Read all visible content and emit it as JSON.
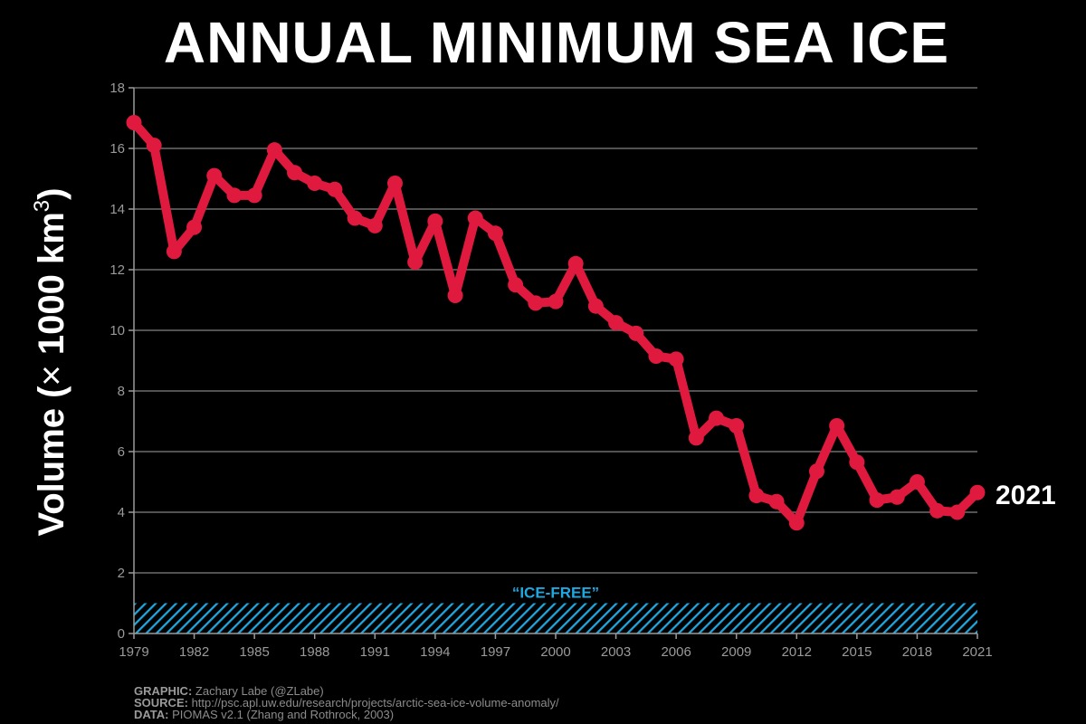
{
  "chart_data": {
    "type": "line",
    "title": "ANNUAL MINIMUM SEA ICE",
    "ylabel_main": "Volume (",
    "ylabel_times": "×",
    "ylabel_units": " 1000 km",
    "ylabel_sup": "3",
    "ylabel_close": ")",
    "ylim": [
      0,
      18
    ],
    "yticks": [
      0,
      2,
      4,
      6,
      8,
      10,
      12,
      14,
      16,
      18
    ],
    "xlim": [
      1979,
      2021
    ],
    "xticks": [
      1979,
      1982,
      1985,
      1988,
      1991,
      1994,
      1997,
      2000,
      2003,
      2006,
      2009,
      2012,
      2015,
      2018,
      2021
    ],
    "grid": "horizontal",
    "series": [
      {
        "color": "#e0193f",
        "x": [
          1979,
          1980,
          1981,
          1982,
          1983,
          1984,
          1985,
          1986,
          1987,
          1988,
          1989,
          1990,
          1991,
          1992,
          1993,
          1994,
          1995,
          1996,
          1997,
          1998,
          1999,
          2000,
          2001,
          2002,
          2003,
          2004,
          2005,
          2006,
          2007,
          2008,
          2009,
          2010,
          2011,
          2012,
          2013,
          2014,
          2015,
          2016,
          2017,
          2018,
          2019,
          2020,
          2021
        ],
        "y": [
          16.85,
          16.1,
          12.6,
          13.4,
          15.1,
          14.45,
          14.45,
          15.95,
          15.2,
          14.85,
          14.65,
          13.7,
          13.45,
          14.85,
          12.25,
          13.6,
          11.15,
          13.7,
          13.2,
          11.5,
          10.9,
          10.95,
          12.2,
          10.8,
          10.25,
          9.9,
          9.15,
          9.05,
          6.45,
          7.1,
          6.85,
          4.55,
          4.35,
          3.65,
          5.35,
          6.85,
          5.65,
          4.4,
          4.5,
          5.0,
          4.05,
          4.0,
          4.65
        ]
      }
    ],
    "end_label": "2021",
    "ice_free": {
      "label": "“ICE-FREE”",
      "range": [
        0,
        1
      ],
      "color": "#1fa8e0"
    }
  },
  "credits": {
    "graphic_label": "GRAPHIC:",
    "graphic_value": " Zachary Labe (@ZLabe)",
    "source_label": "SOURCE:",
    "source_value": " http://psc.apl.uw.edu/research/projects/arctic-sea-ice-volume-anomaly/",
    "data_label": "DATA:",
    "data_value": " PIOMAS v2.1 (Zhang and Rothrock, 2003)"
  }
}
